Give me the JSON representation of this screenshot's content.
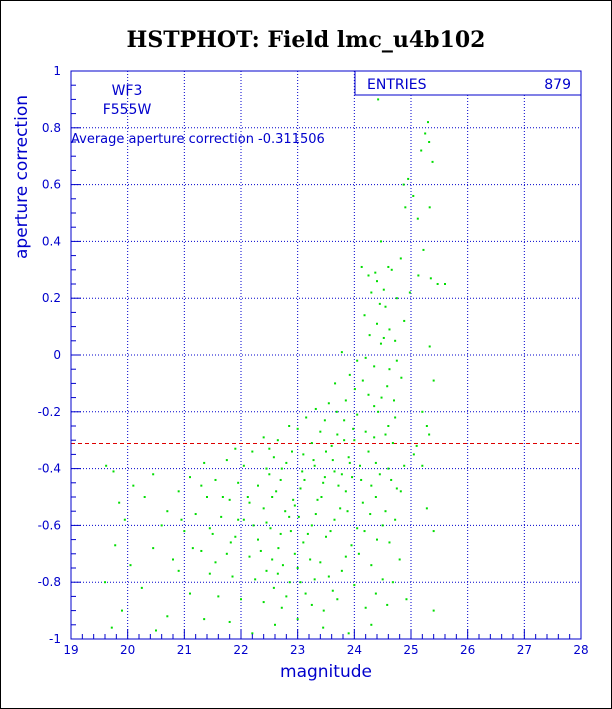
{
  "colors": {
    "title": "#0000cc",
    "axis": "#0000cc",
    "grid": "#0000cc",
    "points": "#00dd00",
    "average_line": "#dd0000",
    "background": "#ffffff"
  },
  "chart_data": {
    "type": "scatter",
    "title": "HSTPHOT: Field lmc_u4b102",
    "xlabel": "magnitude",
    "ylabel": "aperture correction",
    "xlim": [
      19,
      28
    ],
    "ylim": [
      -1,
      1
    ],
    "xticks": [
      19,
      20,
      21,
      22,
      23,
      24,
      25,
      26,
      27,
      28
    ],
    "yticks": [
      -1,
      -0.8,
      -0.6,
      -0.4,
      -0.2,
      0,
      0.2,
      0.4,
      0.6,
      0.8,
      1
    ],
    "grid": true,
    "stats_box": {
      "label": "ENTRIES",
      "value": "879",
      "placement": "top-right"
    },
    "camera": "WF3",
    "filter": "F555W",
    "average_text": "Average aperture correction -0.311506",
    "average_value": -0.311506,
    "points": [
      [
        24.42,
        0.9
      ],
      [
        25.3,
        0.82
      ],
      [
        25.25,
        0.78
      ],
      [
        25.32,
        0.75
      ],
      [
        25.38,
        0.68
      ],
      [
        25.18,
        0.72
      ],
      [
        24.95,
        0.62
      ],
      [
        24.87,
        0.6
      ],
      [
        25.04,
        0.56
      ],
      [
        24.9,
        0.52
      ],
      [
        25.33,
        0.52
      ],
      [
        25.12,
        0.48
      ],
      [
        24.47,
        0.4
      ],
      [
        25.22,
        0.37
      ],
      [
        24.13,
        0.31
      ],
      [
        24.6,
        0.31
      ],
      [
        24.37,
        0.29
      ],
      [
        24.25,
        0.28
      ],
      [
        25.13,
        0.28
      ],
      [
        25.35,
        0.27
      ],
      [
        25.47,
        0.25
      ],
      [
        24.52,
        0.23
      ],
      [
        24.3,
        0.22
      ],
      [
        24.75,
        0.2
      ],
      [
        24.55,
        0.17
      ],
      [
        25.6,
        0.25
      ],
      [
        24.18,
        0.14
      ],
      [
        24.4,
        0.11
      ],
      [
        24.62,
        0.09
      ],
      [
        24.27,
        0.07
      ],
      [
        24.72,
        0.05
      ],
      [
        24.47,
        0.04
      ],
      [
        25.33,
        0.03
      ],
      [
        24.2,
        -0.01
      ],
      [
        23.78,
        0.01
      ],
      [
        24.05,
        -0.02
      ],
      [
        24.35,
        -0.04
      ],
      [
        24.62,
        -0.05
      ],
      [
        23.92,
        -0.07
      ],
      [
        24.15,
        -0.09
      ],
      [
        24.83,
        -0.08
      ],
      [
        25.4,
        -0.09
      ],
      [
        23.66,
        -0.1
      ],
      [
        24.01,
        -0.12
      ],
      [
        24.25,
        -0.14
      ],
      [
        24.48,
        -0.15
      ],
      [
        23.55,
        -0.17
      ],
      [
        23.85,
        -0.16
      ],
      [
        24.7,
        -0.16
      ],
      [
        23.32,
        -0.19
      ],
      [
        23.69,
        -0.2
      ],
      [
        24.05,
        -0.21
      ],
      [
        24.42,
        -0.2
      ],
      [
        25.2,
        -0.2
      ],
      [
        23.15,
        -0.22
      ],
      [
        23.48,
        -0.23
      ],
      [
        23.82,
        -0.23
      ],
      [
        22.85,
        -0.25
      ],
      [
        23.0,
        -0.26
      ],
      [
        23.4,
        -0.27
      ],
      [
        23.7,
        -0.28
      ],
      [
        24.2,
        -0.27
      ],
      [
        24.55,
        -0.28
      ],
      [
        25.28,
        -0.25
      ],
      [
        25.32,
        -0.28
      ],
      [
        22.4,
        -0.29
      ],
      [
        22.65,
        -0.3
      ],
      [
        23.25,
        -0.31
      ],
      [
        23.6,
        -0.32
      ],
      [
        24.0,
        -0.3
      ],
      [
        24.35,
        -0.29
      ],
      [
        24.68,
        -0.31
      ],
      [
        21.9,
        -0.33
      ],
      [
        22.2,
        -0.34
      ],
      [
        22.5,
        -0.33
      ],
      [
        23.1,
        -0.35
      ],
      [
        23.5,
        -0.34
      ],
      [
        23.9,
        -0.36
      ],
      [
        24.25,
        -0.34
      ],
      [
        25.05,
        -0.35
      ],
      [
        21.35,
        -0.38
      ],
      [
        21.75,
        -0.37
      ],
      [
        22.05,
        -0.39
      ],
      [
        22.45,
        -0.4
      ],
      [
        22.8,
        -0.38
      ],
      [
        23.3,
        -0.39
      ],
      [
        23.65,
        -0.41
      ],
      [
        24.1,
        -0.39
      ],
      [
        24.6,
        -0.4
      ],
      [
        19.62,
        -0.39
      ],
      [
        19.75,
        -0.41
      ],
      [
        20.45,
        -0.42
      ],
      [
        21.1,
        -0.43
      ],
      [
        21.55,
        -0.44
      ],
      [
        21.95,
        -0.45
      ],
      [
        22.3,
        -0.46
      ],
      [
        22.7,
        -0.44
      ],
      [
        23.05,
        -0.47
      ],
      [
        23.45,
        -0.45
      ],
      [
        23.85,
        -0.48
      ],
      [
        24.3,
        -0.46
      ],
      [
        24.75,
        -0.47
      ],
      [
        20.1,
        -0.46
      ],
      [
        20.9,
        -0.48
      ],
      [
        21.4,
        -0.5
      ],
      [
        21.8,
        -0.51
      ],
      [
        22.15,
        -0.52
      ],
      [
        22.55,
        -0.5
      ],
      [
        22.95,
        -0.53
      ],
      [
        23.35,
        -0.51
      ],
      [
        23.75,
        -0.54
      ],
      [
        24.15,
        -0.52
      ],
      [
        24.55,
        -0.55
      ],
      [
        19.85,
        -0.52
      ],
      [
        20.3,
        -0.5
      ],
      [
        20.7,
        -0.55
      ],
      [
        21.2,
        -0.56
      ],
      [
        21.65,
        -0.57
      ],
      [
        22.05,
        -0.58
      ],
      [
        22.45,
        -0.59
      ],
      [
        22.85,
        -0.57
      ],
      [
        23.25,
        -0.6
      ],
      [
        23.65,
        -0.58
      ],
      [
        24.05,
        -0.61
      ],
      [
        24.5,
        -0.6
      ],
      [
        25.28,
        -0.54
      ],
      [
        19.95,
        -0.58
      ],
      [
        20.6,
        -0.6
      ],
      [
        21.0,
        -0.62
      ],
      [
        21.5,
        -0.63
      ],
      [
        21.9,
        -0.64
      ],
      [
        22.3,
        -0.65
      ],
      [
        22.7,
        -0.63
      ],
      [
        23.1,
        -0.66
      ],
      [
        23.5,
        -0.64
      ],
      [
        23.95,
        -0.67
      ],
      [
        24.4,
        -0.65
      ],
      [
        25.4,
        -0.62
      ],
      [
        19.78,
        -0.67
      ],
      [
        20.45,
        -0.68
      ],
      [
        21.3,
        -0.69
      ],
      [
        21.75,
        -0.7
      ],
      [
        22.15,
        -0.71
      ],
      [
        22.55,
        -0.72
      ],
      [
        22.95,
        -0.7
      ],
      [
        23.4,
        -0.73
      ],
      [
        23.85,
        -0.71
      ],
      [
        24.3,
        -0.74
      ],
      [
        24.8,
        -0.72
      ],
      [
        20.05,
        -0.74
      ],
      [
        20.9,
        -0.76
      ],
      [
        21.45,
        -0.77
      ],
      [
        21.85,
        -0.78
      ],
      [
        22.25,
        -0.79
      ],
      [
        22.65,
        -0.77
      ],
      [
        23.05,
        -0.8
      ],
      [
        23.55,
        -0.78
      ],
      [
        24.0,
        -0.81
      ],
      [
        24.5,
        -0.79
      ],
      [
        19.6,
        -0.8
      ],
      [
        20.25,
        -0.82
      ],
      [
        21.1,
        -0.84
      ],
      [
        21.6,
        -0.85
      ],
      [
        22.0,
        -0.86
      ],
      [
        22.4,
        -0.87
      ],
      [
        22.8,
        -0.85
      ],
      [
        23.25,
        -0.88
      ],
      [
        23.7,
        -0.86
      ],
      [
        24.2,
        -0.89
      ],
      [
        25.4,
        -0.9
      ],
      [
        19.9,
        -0.9
      ],
      [
        20.7,
        -0.92
      ],
      [
        21.35,
        -0.93
      ],
      [
        21.8,
        -0.94
      ],
      [
        22.6,
        -0.95
      ],
      [
        23.0,
        -0.93
      ],
      [
        23.45,
        -0.96
      ],
      [
        24.3,
        -0.95
      ],
      [
        19.72,
        -0.96
      ],
      [
        20.5,
        -0.97
      ],
      [
        22.2,
        -0.98
      ],
      [
        23.9,
        -0.98
      ],
      [
        22.5,
        -0.42
      ],
      [
        22.62,
        -0.48
      ],
      [
        22.78,
        -0.55
      ],
      [
        22.88,
        -0.62
      ],
      [
        22.4,
        -0.54
      ],
      [
        22.52,
        -0.61
      ],
      [
        22.66,
        -0.68
      ],
      [
        22.74,
        -0.74
      ],
      [
        22.92,
        -0.51
      ],
      [
        23.02,
        -0.57
      ],
      [
        23.12,
        -0.44
      ],
      [
        23.18,
        -0.63
      ],
      [
        22.35,
        -0.69
      ],
      [
        22.22,
        -0.6
      ],
      [
        22.12,
        -0.5
      ],
      [
        23.22,
        -0.72
      ],
      [
        23.32,
        -0.56
      ],
      [
        23.42,
        -0.5
      ],
      [
        23.58,
        -0.62
      ],
      [
        23.72,
        -0.46
      ],
      [
        23.88,
        -0.55
      ],
      [
        23.96,
        -0.43
      ],
      [
        24.08,
        -0.7
      ],
      [
        24.18,
        -0.62
      ],
      [
        24.28,
        -0.56
      ],
      [
        24.38,
        -0.5
      ],
      [
        24.45,
        -0.42
      ],
      [
        24.62,
        -0.66
      ],
      [
        24.72,
        -0.58
      ],
      [
        24.82,
        -0.48
      ],
      [
        21.95,
        -0.58
      ],
      [
        21.82,
        -0.66
      ],
      [
        21.68,
        -0.5
      ],
      [
        21.55,
        -0.73
      ],
      [
        21.45,
        -0.61
      ],
      [
        21.3,
        -0.46
      ],
      [
        21.15,
        -0.68
      ],
      [
        20.95,
        -0.58
      ],
      [
        20.8,
        -0.72
      ],
      [
        22.58,
        -0.36
      ],
      [
        22.72,
        -0.4
      ],
      [
        22.9,
        -0.34
      ],
      [
        23.08,
        -0.41
      ],
      [
        23.28,
        -0.37
      ],
      [
        23.48,
        -0.43
      ],
      [
        23.62,
        -0.37
      ],
      [
        23.78,
        -0.42
      ],
      [
        23.92,
        -0.38
      ],
      [
        24.12,
        -0.44
      ],
      [
        24.38,
        -0.38
      ],
      [
        24.65,
        -0.44
      ],
      [
        24.88,
        -0.39
      ],
      [
        22.45,
        -0.76
      ],
      [
        22.58,
        -0.82
      ],
      [
        22.72,
        -0.89
      ],
      [
        22.86,
        -0.8
      ],
      [
        23.0,
        -0.75
      ],
      [
        23.14,
        -0.84
      ],
      [
        23.3,
        -0.79
      ],
      [
        23.46,
        -0.9
      ],
      [
        23.62,
        -0.83
      ],
      [
        23.78,
        -0.76
      ],
      [
        24.38,
        -0.84
      ],
      [
        24.58,
        -0.88
      ],
      [
        24.68,
        -0.8
      ],
      [
        24.92,
        -0.86
      ],
      [
        24.6,
        -0.25
      ],
      [
        24.72,
        -0.22
      ],
      [
        24.35,
        -0.18
      ],
      [
        24.58,
        -0.11
      ],
      [
        24.75,
        -0.02
      ],
      [
        24.88,
        0.12
      ],
      [
        24.98,
        0.22
      ],
      [
        24.82,
        0.34
      ],
      [
        24.66,
        0.3
      ],
      [
        24.52,
        0.06
      ],
      [
        24.45,
        0.18
      ],
      [
        24.4,
        0.26
      ],
      [
        23.98,
        -0.26
      ],
      [
        23.82,
        -0.3
      ],
      [
        25.1,
        -0.32
      ],
      [
        25.2,
        -0.39
      ]
    ]
  }
}
